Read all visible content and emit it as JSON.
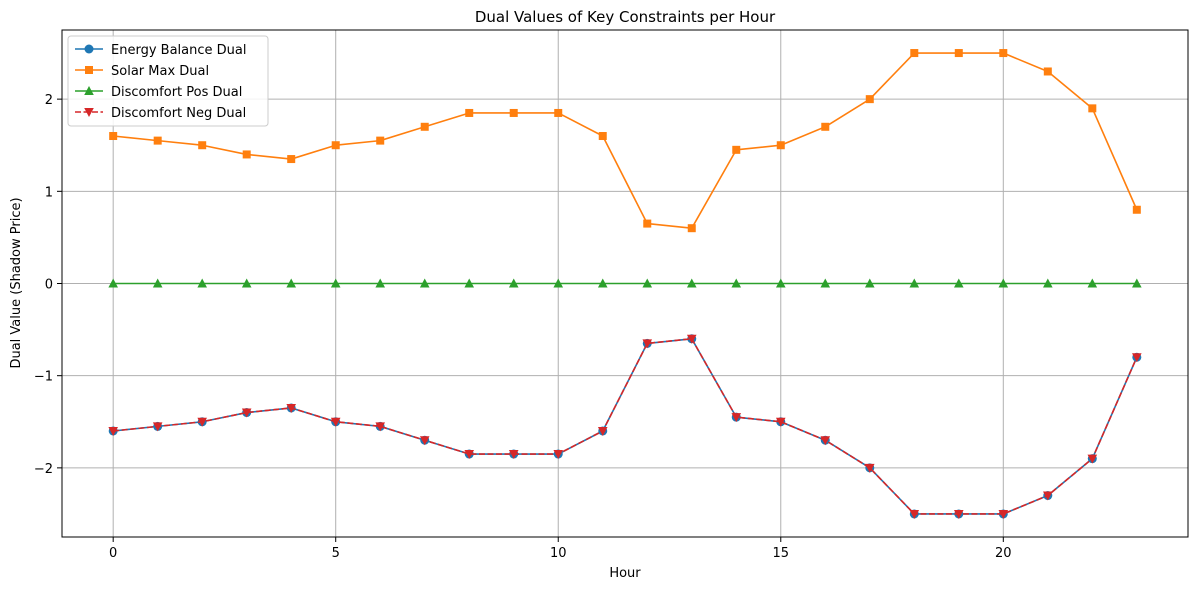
{
  "chart_data": {
    "type": "line",
    "title": "Dual Values of Key Constraints per Hour",
    "xlabel": "Hour",
    "ylabel": "Dual Value (Shadow Price)",
    "xlim": [
      -1.15,
      24.15
    ],
    "ylim": [
      -2.75,
      2.75
    ],
    "xticks": [
      0,
      5,
      10,
      15,
      20
    ],
    "yticks": [
      -2,
      -1,
      0,
      1,
      2
    ],
    "grid": true,
    "legend_position": "top-left",
    "x": [
      0,
      1,
      2,
      3,
      4,
      5,
      6,
      7,
      8,
      9,
      10,
      11,
      12,
      13,
      14,
      15,
      16,
      17,
      18,
      19,
      20,
      21,
      22,
      23
    ],
    "series": [
      {
        "name": "Energy Balance Dual",
        "color": "#1f77b4",
        "marker": "circle",
        "linestyle": "solid",
        "values": [
          -1.6,
          -1.55,
          -1.5,
          -1.4,
          -1.35,
          -1.5,
          -1.55,
          -1.7,
          -1.85,
          -1.85,
          -1.85,
          -1.6,
          -0.65,
          -0.6,
          -1.45,
          -1.5,
          -1.7,
          -2.0,
          -2.5,
          -2.5,
          -2.5,
          -2.3,
          -1.9,
          -0.8
        ]
      },
      {
        "name": "Solar Max Dual",
        "color": "#ff7f0e",
        "marker": "square",
        "linestyle": "solid",
        "values": [
          1.6,
          1.55,
          1.5,
          1.4,
          1.35,
          1.5,
          1.55,
          1.7,
          1.85,
          1.85,
          1.85,
          1.6,
          0.65,
          0.6,
          1.45,
          1.5,
          1.7,
          2.0,
          2.5,
          2.5,
          2.5,
          2.3,
          1.9,
          0.8
        ]
      },
      {
        "name": "Discomfort Pos Dual",
        "color": "#2ca02c",
        "marker": "triangle-up",
        "linestyle": "solid",
        "values": [
          0,
          0,
          0,
          0,
          0,
          0,
          0,
          0,
          0,
          0,
          0,
          0,
          0,
          0,
          0,
          0,
          0,
          0,
          0,
          0,
          0,
          0,
          0,
          0
        ]
      },
      {
        "name": "Discomfort Neg Dual",
        "color": "#d62728",
        "marker": "triangle-down",
        "linestyle": "dashed",
        "values": [
          -1.6,
          -1.55,
          -1.5,
          -1.4,
          -1.35,
          -1.5,
          -1.55,
          -1.7,
          -1.85,
          -1.85,
          -1.85,
          -1.6,
          -0.65,
          -0.6,
          -1.45,
          -1.5,
          -1.7,
          -2.0,
          -2.5,
          -2.5,
          -2.5,
          -2.3,
          -1.9,
          -0.8
        ]
      }
    ]
  }
}
